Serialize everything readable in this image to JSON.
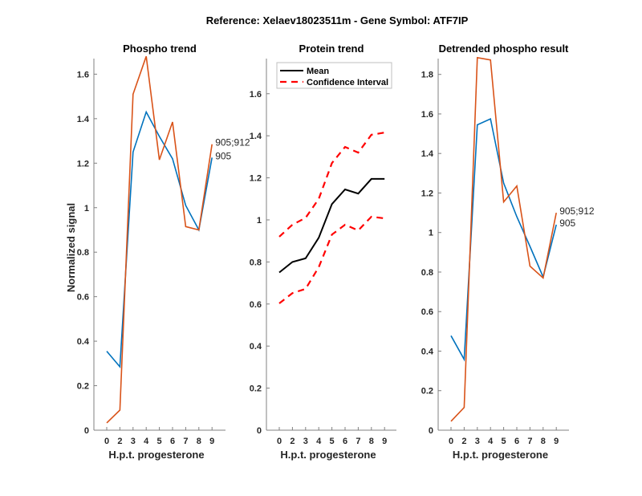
{
  "suptitle": "Reference:  Xelaev18023511m - Gene Symbol:  ATF7IP",
  "colors": {
    "blue": "#0072BD",
    "orange": "#D95319",
    "mean": "#000000",
    "ci": "#FF0000",
    "axis": "#808080"
  },
  "chart_data": [
    {
      "type": "line",
      "title": "Phospho trend",
      "xlabel": "H.p.t. progesterone",
      "ylabel": "Normalized signal",
      "categories": [
        "0",
        "2",
        "3",
        "4",
        "5",
        "6",
        "7",
        "8",
        "9"
      ],
      "ylim": [
        0,
        1.67
      ],
      "yticks": [
        0,
        0.2,
        0.4,
        0.6,
        0.8,
        1,
        1.2,
        1.4,
        1.6
      ],
      "ytick_labels": [
        "0",
        "0.2",
        "0.4",
        "0.6",
        "0.8",
        "1",
        "1.2",
        "1.4",
        "1.6"
      ],
      "grid": false,
      "series": [
        {
          "name": "905",
          "color_key": "blue",
          "style": "solid",
          "values": [
            0.355,
            0.285,
            1.25,
            1.43,
            1.32,
            1.22,
            1.01,
            0.9,
            1.225
          ]
        },
        {
          "name": "905;912",
          "color_key": "orange",
          "style": "solid",
          "values": [
            0.033,
            0.09,
            1.51,
            1.68,
            1.215,
            1.385,
            0.915,
            0.9,
            1.285
          ]
        }
      ],
      "annotations": [
        {
          "text": "905;912",
          "series": "905;912"
        },
        {
          "text": "905",
          "series": "905"
        }
      ]
    },
    {
      "type": "line",
      "title": "Protein trend",
      "xlabel": "H.p.t. progesterone",
      "ylabel": "",
      "categories": [
        "0",
        "2",
        "3",
        "4",
        "5",
        "6",
        "7",
        "8",
        "9"
      ],
      "ylim": [
        0,
        1.767
      ],
      "yticks": [
        0,
        0.2,
        0.4,
        0.6,
        0.8,
        1,
        1.2,
        1.4,
        1.6
      ],
      "ytick_labels": [
        "0",
        "0.2",
        "0.4",
        "0.6",
        "0.8",
        "1",
        "1.2",
        "1.4",
        "1.6"
      ],
      "grid": false,
      "legend": {
        "placement": "top-left",
        "entries": [
          "Mean",
          "Confidence Interval"
        ]
      },
      "series": [
        {
          "name": "Mean",
          "color_key": "mean",
          "style": "solid",
          "values": [
            0.75,
            0.8,
            0.817,
            0.915,
            1.075,
            1.145,
            1.125,
            1.195,
            1.195
          ]
        },
        {
          "name": "Confidence Interval (upper)",
          "color_key": "ci",
          "style": "dashed",
          "values": [
            0.92,
            0.977,
            1.01,
            1.1,
            1.27,
            1.347,
            1.32,
            1.405,
            1.415
          ]
        },
        {
          "name": "Confidence Interval (lower)",
          "color_key": "ci",
          "style": "dashed",
          "values": [
            0.603,
            0.652,
            0.672,
            0.775,
            0.93,
            0.977,
            0.95,
            1.015,
            1.007
          ]
        }
      ]
    },
    {
      "type": "line",
      "title": "Detrended phospho result",
      "xlabel": "H.p.t. progesterone",
      "ylabel": "",
      "categories": [
        "0",
        "2",
        "3",
        "4",
        "5",
        "6",
        "7",
        "8",
        "9"
      ],
      "ylim": [
        0,
        1.88
      ],
      "yticks": [
        0,
        0.2,
        0.4,
        0.6,
        0.8,
        1,
        1.2,
        1.4,
        1.6,
        1.8
      ],
      "ytick_labels": [
        "0",
        "0.2",
        "0.4",
        "0.6",
        "0.8",
        "1",
        "1.2",
        "1.4",
        "1.6",
        "1.8"
      ],
      "grid": false,
      "series": [
        {
          "name": "905",
          "color_key": "blue",
          "style": "solid",
          "values": [
            0.478,
            0.358,
            1.545,
            1.575,
            1.25,
            1.08,
            0.93,
            0.775,
            1.04
          ]
        },
        {
          "name": "905;912",
          "color_key": "orange",
          "style": "solid",
          "values": [
            0.045,
            0.115,
            1.885,
            1.873,
            1.155,
            1.235,
            0.83,
            0.77,
            1.1
          ]
        }
      ],
      "annotations": [
        {
          "text": "905;912",
          "series": "905;912"
        },
        {
          "text": "905",
          "series": "905"
        }
      ]
    }
  ]
}
